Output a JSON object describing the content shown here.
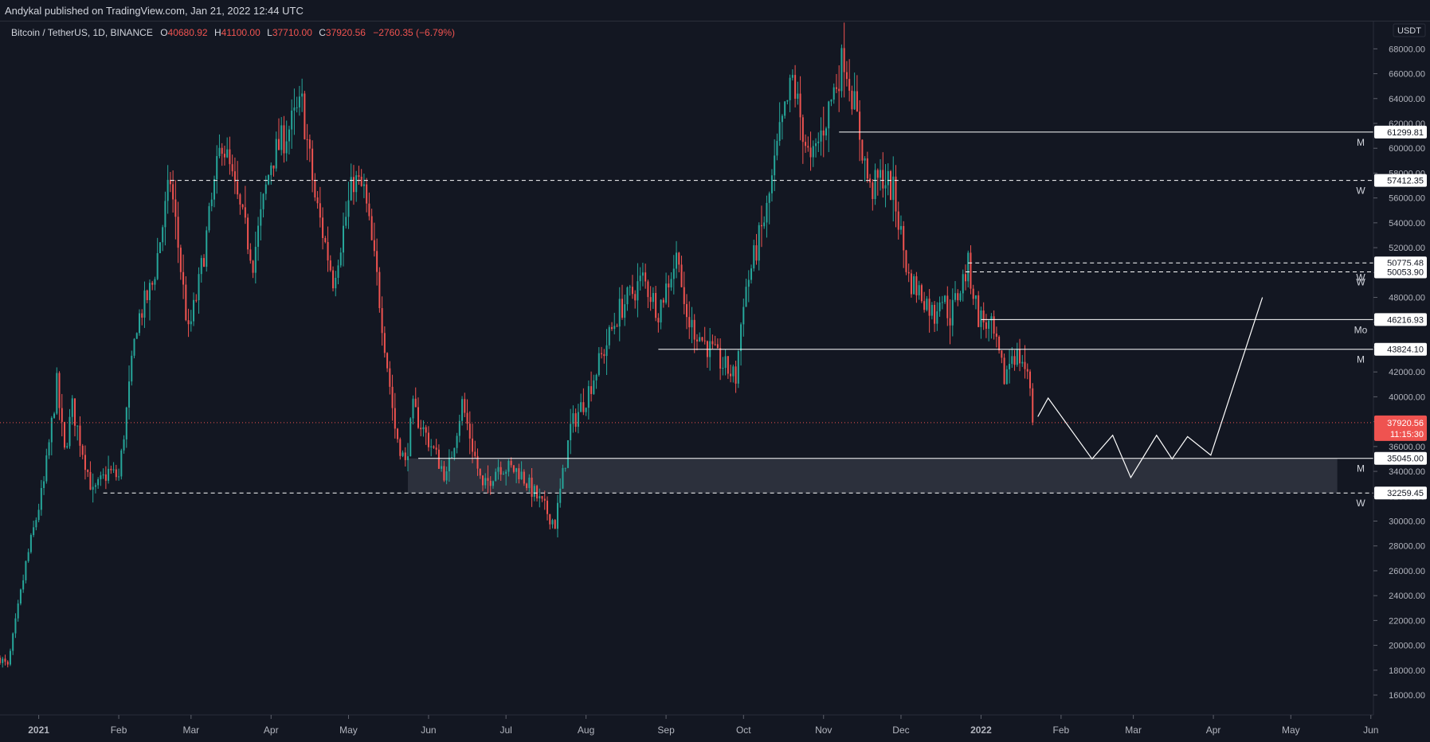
{
  "header": {
    "published_text": "Andykal published on TradingView.com, Jan 21, 2022 12:44 UTC"
  },
  "chart_data": {
    "type": "candlestick",
    "symbol": {
      "title": "Bitcoin / TetherUS, 1D, BINANCE",
      "open": "O40680.92",
      "high": "H41100.00",
      "low": "L37710.00",
      "close": "C37920.56",
      "change": "−2760.35 (−6.79%)"
    },
    "currency": "USDT",
    "ylim": [
      14400,
      70200
    ],
    "y_ticks": [
      16000,
      18000,
      20000,
      22000,
      24000,
      26000,
      28000,
      30000,
      32000,
      34000,
      36000,
      38000,
      40000,
      42000,
      44000,
      46000,
      48000,
      50000,
      52000,
      54000,
      56000,
      58000,
      60000,
      62000,
      64000,
      66000,
      68000
    ],
    "x_range": [
      "2020-12-17",
      "2022-06-02"
    ],
    "x_ticks": [
      {
        "date": "2021-01-01",
        "label": "2021",
        "bold": true
      },
      {
        "date": "2021-02-01",
        "label": "Feb"
      },
      {
        "date": "2021-03-01",
        "label": "Mar"
      },
      {
        "date": "2021-04-01",
        "label": "Apr"
      },
      {
        "date": "2021-05-01",
        "label": "May"
      },
      {
        "date": "2021-06-01",
        "label": "Jun"
      },
      {
        "date": "2021-07-01",
        "label": "Jul"
      },
      {
        "date": "2021-08-01",
        "label": "Aug"
      },
      {
        "date": "2021-09-01",
        "label": "Sep"
      },
      {
        "date": "2021-10-01",
        "label": "Oct"
      },
      {
        "date": "2021-11-01",
        "label": "Nov"
      },
      {
        "date": "2021-12-01",
        "label": "Dec"
      },
      {
        "date": "2022-01-01",
        "label": "2022",
        "bold": true
      },
      {
        "date": "2022-02-01",
        "label": "Feb"
      },
      {
        "date": "2022-03-01",
        "label": "Mar"
      },
      {
        "date": "2022-04-01",
        "label": "Apr"
      },
      {
        "date": "2022-05-01",
        "label": "May"
      },
      {
        "date": "2022-06-01",
        "label": "Jun"
      }
    ],
    "colors": {
      "up": "#26a69a",
      "down": "#ef5350",
      "background": "#131722",
      "line": "#ffffff",
      "zone": "#363a45"
    },
    "price_anchors": [
      [
        "2020-12-17",
        19000
      ],
      [
        "2020-12-20",
        18200
      ],
      [
        "2020-12-27",
        26500
      ],
      [
        "2021-01-03",
        33000
      ],
      [
        "2021-01-08",
        41000
      ],
      [
        "2021-01-11",
        35500
      ],
      [
        "2021-01-14",
        39200
      ],
      [
        "2021-01-22",
        32200
      ],
      [
        "2021-01-28",
        34000
      ],
      [
        "2021-02-01",
        33500
      ],
      [
        "2021-02-08",
        46000
      ],
      [
        "2021-02-14",
        49000
      ],
      [
        "2021-02-21",
        57500
      ],
      [
        "2021-02-28",
        45000
      ],
      [
        "2021-03-04",
        49000
      ],
      [
        "2021-03-13",
        60800
      ],
      [
        "2021-03-18",
        56500
      ],
      [
        "2021-03-25",
        51000
      ],
      [
        "2021-04-01",
        59000
      ],
      [
        "2021-04-13",
        63500
      ],
      [
        "2021-04-18",
        56000
      ],
      [
        "2021-04-25",
        49500
      ],
      [
        "2021-05-03",
        57500
      ],
      [
        "2021-05-07",
        56500
      ],
      [
        "2021-05-12",
        49500
      ],
      [
        "2021-05-19",
        37500
      ],
      [
        "2021-05-23",
        34500
      ],
      [
        "2021-05-26",
        39000
      ],
      [
        "2021-06-01",
        36500
      ],
      [
        "2021-06-08",
        33500
      ],
      [
        "2021-06-14",
        39500
      ],
      [
        "2021-06-22",
        32500
      ],
      [
        "2021-06-28",
        34500
      ],
      [
        "2021-07-06",
        34000
      ],
      [
        "2021-07-20",
        29800
      ],
      [
        "2021-07-26",
        37500
      ],
      [
        "2021-08-01",
        40000
      ],
      [
        "2021-08-14",
        47000
      ],
      [
        "2021-08-23",
        49500
      ],
      [
        "2021-08-29",
        47000
      ],
      [
        "2021-09-06",
        51800
      ],
      [
        "2021-09-08",
        46500
      ],
      [
        "2021-09-21",
        43000
      ],
      [
        "2021-09-28",
        41500
      ],
      [
        "2021-10-01",
        48000
      ],
      [
        "2021-10-10",
        55000
      ],
      [
        "2021-10-15",
        61000
      ],
      [
        "2021-10-20",
        65500
      ],
      [
        "2021-10-27",
        58500
      ],
      [
        "2021-11-02",
        62500
      ],
      [
        "2021-11-09",
        67500
      ],
      [
        "2021-11-12",
        64500
      ],
      [
        "2021-11-16",
        60000
      ],
      [
        "2021-11-19",
        56500
      ],
      [
        "2021-11-24",
        57800
      ],
      [
        "2021-11-28",
        56500
      ],
      [
        "2021-12-04",
        49500
      ],
      [
        "2021-12-10",
        48000
      ],
      [
        "2021-12-14",
        46500
      ],
      [
        "2021-12-16",
        48500
      ],
      [
        "2021-12-20",
        46500
      ],
      [
        "2021-12-27",
        50500
      ],
      [
        "2021-12-31",
        46500
      ],
      [
        "2022-01-05",
        45500
      ],
      [
        "2022-01-10",
        41500
      ],
      [
        "2022-01-13",
        43500
      ],
      [
        "2022-01-17",
        43000
      ],
      [
        "2022-01-20",
        40680.92
      ],
      [
        "2022-01-21",
        37920.56
      ]
    ],
    "zone": {
      "from": "2021-05-24",
      "to": "2022-05-19",
      "top": 35045.0,
      "bottom": 32259.45
    },
    "lines": [
      {
        "price": 61299.81,
        "from": "2021-11-07",
        "style": "solid",
        "tag": "M"
      },
      {
        "price": 57412.35,
        "from": "2021-02-21",
        "style": "dashed",
        "tag": "W"
      },
      {
        "price": 50775.48,
        "from": "2021-12-27",
        "style": "dashed",
        "tag": ""
      },
      {
        "price": 50053.9,
        "from": "2021-12-26",
        "style": "dashed",
        "tag": "W"
      },
      {
        "price": 46216.93,
        "from": "2022-01-01",
        "style": "solid",
        "tag": "Mo"
      },
      {
        "price": 43824.1,
        "from": "2021-08-29",
        "style": "solid",
        "tag": "M"
      },
      {
        "price": 35045.0,
        "from": "2021-05-28",
        "style": "solid",
        "tag": "M"
      },
      {
        "price": 32259.45,
        "from": "2021-01-26",
        "style": "dashed",
        "tag": "W"
      }
    ],
    "extra_tags": [
      {
        "price": 49600,
        "tag": "W"
      }
    ],
    "price_labels": [
      {
        "price": 61299.81,
        "text": "61299.81"
      },
      {
        "price": 57412.35,
        "text": "57412.35"
      },
      {
        "price": 50775.48,
        "text": "50775.48"
      },
      {
        "price": 50053.9,
        "text": "50053.90"
      },
      {
        "price": 46216.93,
        "text": "46216.93"
      },
      {
        "price": 43824.1,
        "text": "43824.10"
      },
      {
        "price": 35045.0,
        "text": "35045.00"
      },
      {
        "price": 32259.45,
        "text": "32259.45"
      }
    ],
    "last_price": {
      "price": 37920.56,
      "text": "37920.56",
      "countdown": "11:15:30"
    },
    "projection": [
      [
        "2022-01-23",
        38400
      ],
      [
        "2022-01-27",
        39900
      ],
      [
        "2022-02-13",
        35000
      ],
      [
        "2022-02-21",
        36900
      ],
      [
        "2022-02-28",
        33500
      ],
      [
        "2022-03-10",
        36900
      ],
      [
        "2022-03-16",
        35000
      ],
      [
        "2022-03-22",
        36800
      ],
      [
        "2022-03-31",
        35300
      ],
      [
        "2022-04-20",
        48000
      ]
    ]
  }
}
